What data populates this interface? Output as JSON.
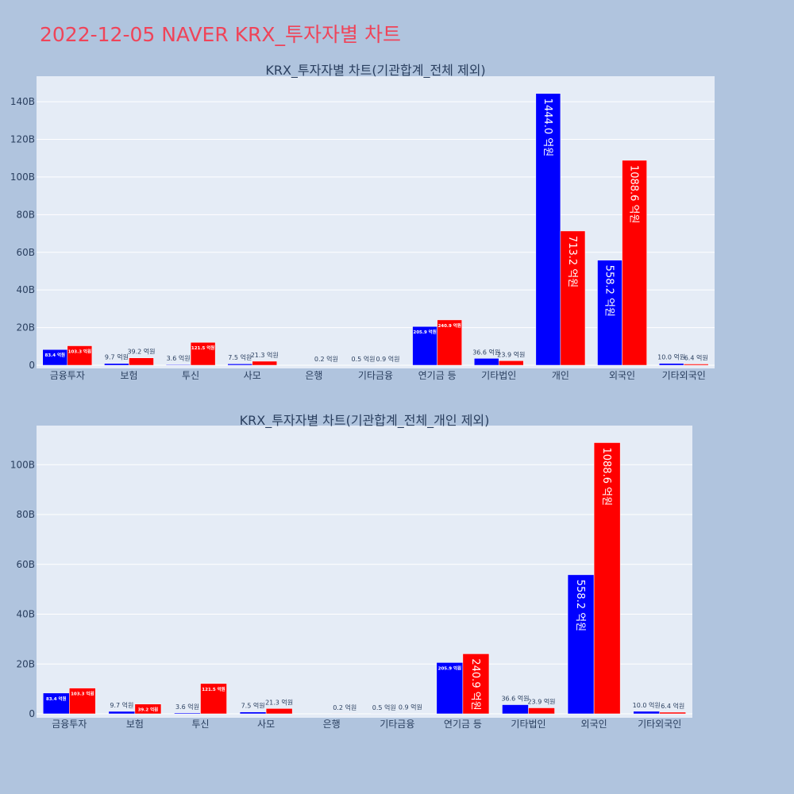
{
  "page": {
    "title": "2022-12-05 NAVER KRX_투자자별 차트"
  },
  "colors": {
    "page_bg": "#b0c4de",
    "plot_bg": "#e5ecf6",
    "buy": "#0000ff",
    "sell": "#ff0000",
    "title": "#ef4459",
    "text": "#2a3f5f"
  },
  "chart_data": [
    {
      "type": "bar",
      "title": "KRX_투자자별 차트(기관합계_전체 제외)",
      "categories": [
        "금융투자",
        "보험",
        "투신",
        "사모",
        "은행",
        "기타금융",
        "연기금 등",
        "기타법인",
        "개인",
        "외국인",
        "기타외국인"
      ],
      "yticks": [
        0,
        20,
        40,
        60,
        80,
        100,
        120,
        140
      ],
      "ytick_labels": [
        "0",
        "20B",
        "40B",
        "60B",
        "80B",
        "100B",
        "120B",
        "140B"
      ],
      "ylim": [
        0,
        150
      ],
      "grid": true,
      "series": [
        {
          "color": "#0000ff",
          "values": [
            8.34,
            0.97,
            0.36,
            0.75,
            0,
            0.05,
            20.59,
            3.66,
            144.4,
            55.82,
            1.0
          ],
          "labels": [
            "83.4 억원",
            "9.7 억원",
            "3.6 억원",
            "7.5 억원",
            "",
            "0.5 억원",
            "205.9 억원",
            "36.6 억원",
            "1444.0 억원",
            "558.2 억원",
            "10.0 억원"
          ]
        },
        {
          "color": "#ff0000",
          "values": [
            10.33,
            3.92,
            12.15,
            2.13,
            0.02,
            0.09,
            24.09,
            2.39,
            71.32,
            108.86,
            0.64
          ],
          "labels": [
            "103.3 억원",
            "39.2 억원",
            "121.5 억원",
            "21.3 억원",
            "0.2 억원",
            "0.9 억원",
            "240.9 억원",
            "23.9 억원",
            "713.2 억원",
            "1088.6 억원",
            "6.4 억원"
          ]
        }
      ]
    },
    {
      "type": "bar",
      "title": "KRX_투자자별 차트(기관합계_전체_개인 제외)",
      "categories": [
        "금융투자",
        "보험",
        "투신",
        "사모",
        "은행",
        "기타금융",
        "연기금 등",
        "기타법인",
        "외국인",
        "기타외국인"
      ],
      "yticks": [
        0,
        20,
        40,
        60,
        80,
        100
      ],
      "ytick_labels": [
        "0",
        "20B",
        "40B",
        "60B",
        "80B",
        "100B"
      ],
      "ylim": [
        0,
        114.5
      ],
      "grid": true,
      "series": [
        {
          "color": "#0000ff",
          "values": [
            8.34,
            0.97,
            0.36,
            0.75,
            0,
            0.05,
            20.59,
            3.66,
            55.82,
            1.0
          ],
          "labels": [
            "83.4 억원",
            "9.7 억원",
            "3.6 억원",
            "7.5 억원",
            "",
            "0.5 억원",
            "205.9 억원",
            "36.6 억원",
            "558.2 억원",
            "10.0 억원"
          ]
        },
        {
          "color": "#ff0000",
          "values": [
            10.33,
            3.92,
            12.15,
            2.13,
            0.02,
            0.09,
            24.09,
            2.39,
            108.86,
            0.64
          ],
          "labels": [
            "103.3 억원",
            "39.2 억원",
            "121.5 억원",
            "21.3 억원",
            "0.2 억원",
            "0.9 억원",
            "240.9 억원",
            "23.9 억원",
            "1088.6 억원",
            "6.4 억원"
          ]
        }
      ]
    }
  ]
}
